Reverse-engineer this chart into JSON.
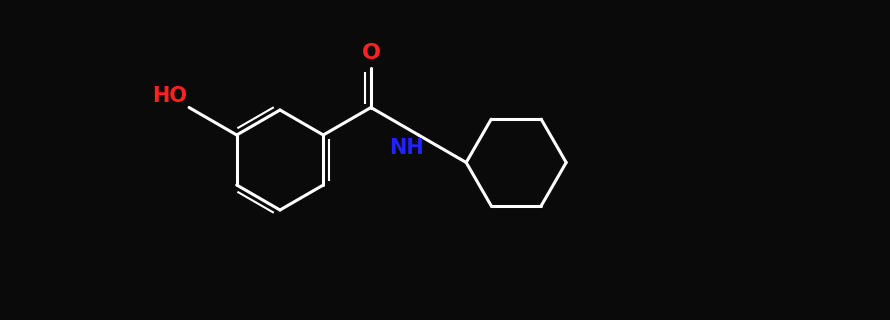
{
  "bg_color": "#0a0a0a",
  "bond_color": "#ffffff",
  "O_color": "#ff2222",
  "N_color": "#2222ff",
  "HO_label": "HO",
  "O_label": "O",
  "NH_label": "NH",
  "figsize": [
    8.9,
    3.2
  ],
  "dpi": 100
}
